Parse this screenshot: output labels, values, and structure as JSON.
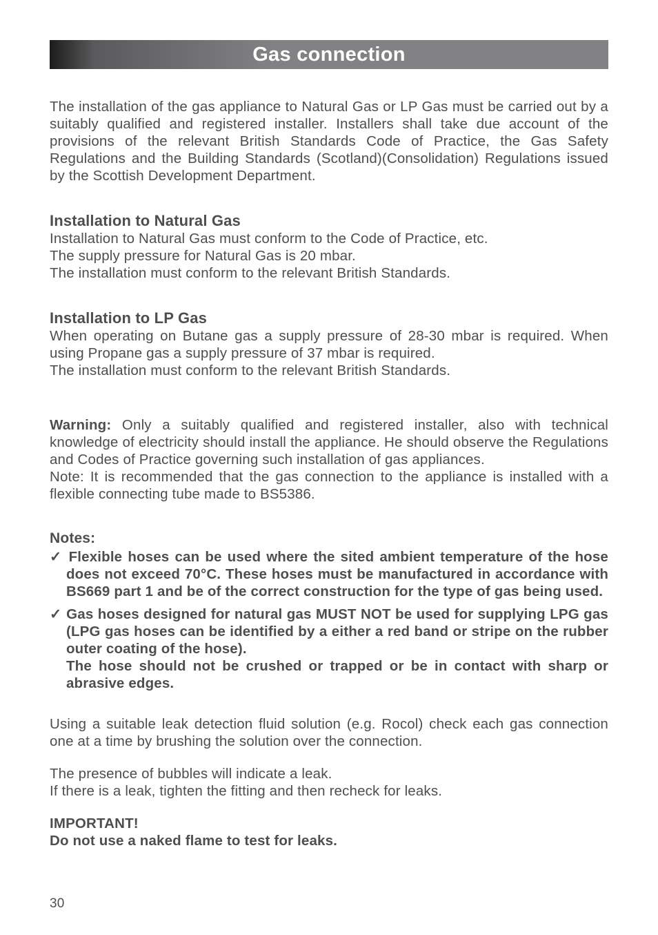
{
  "banner": {
    "title": "Gas connection"
  },
  "intro": "The installation of the gas appliance to Natural Gas or LP Gas must be carried out by a suitably qualified and registered installer. Installers shall take due account of the provisions of the relevant British Standards Code of Practice, the Gas Safety Regulations and the Building Standards (Scotland)(Consolidation) Regulations issued by the Scottish Development Department.",
  "sec1": {
    "heading": "Installation to Natural Gas",
    "l1": "Installation to Natural Gas must conform to the Code of Practice, etc.",
    "l2": "The supply pressure for Natural Gas is 20 mbar.",
    "l3": "The installation must conform to the relevant British Standards."
  },
  "sec2": {
    "heading": "Installation to LP Gas",
    "p1": "When operating on Butane gas a supply pressure of 28-30 mbar is required. When using Propane gas a supply pressure of 37 mbar is required.",
    "l2": "The installation must conform to the relevant British Standards."
  },
  "warning": {
    "label": "Warning:",
    "p1": " Only a suitably qualified and registered installer, also with technical knowledge of electricity should install the appliance. He should observe the Regulations and Codes of Practice governing such installation of gas appliances.",
    "p2": "Note: It is recommended that the gas connection to the appliance is installed with a flexible connecting tube made to BS5386."
  },
  "notes": {
    "heading": "Notes:",
    "n1": "✓ Flexible hoses can be used where the sited ambient temperature of the hose does not exceed 70°C. These hoses must be manufactured in accordance with BS669 part 1 and be of the correct construction for the type of gas being used.",
    "n2": "✓ Gas hoses designed for natural gas MUST NOT be used for supplying LPG gas (LPG gas hoses can be identified by a either a red band or stripe on the rubber outer coating of the hose).",
    "n2b": "The hose should not be crushed or trapped or be in contact with sharp or abrasive edges."
  },
  "leak": {
    "p1": "Using a suitable leak detection fluid solution (e.g. Rocol) check each gas connection one at a time by brushing the solution over the connection.",
    "p2a": "The presence of bubbles will indicate a leak.",
    "p2b": "If there is a leak, tighten the fitting and then recheck for leaks."
  },
  "important": {
    "l1": "IMPORTANT!",
    "l2": "Do not use a naked flame to test for leaks."
  },
  "page": "30"
}
